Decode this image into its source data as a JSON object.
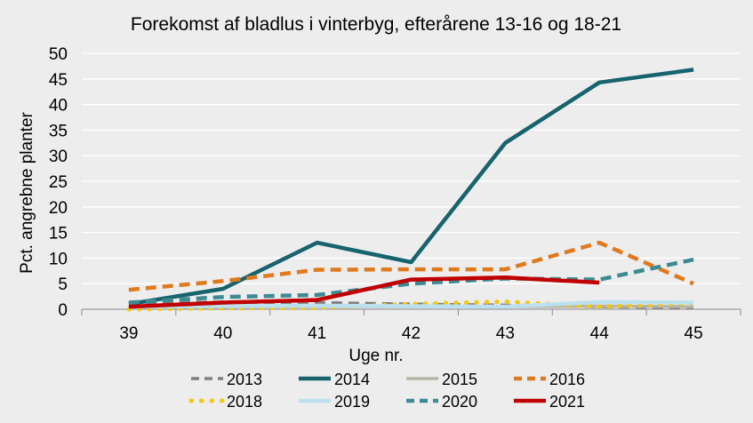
{
  "chart_data": {
    "type": "line",
    "title": "Forekomst af bladlus i vinterbyg, efterårene 13-16 og 18-21",
    "xlabel": "Uge nr.",
    "ylabel": "Pct. angrebne planter",
    "categories": [
      "39",
      "40",
      "41",
      "42",
      "43",
      "44",
      "45"
    ],
    "ylim": [
      0,
      50
    ],
    "yticks": [
      0,
      5,
      10,
      15,
      20,
      25,
      30,
      35,
      40,
      45,
      50
    ],
    "grid": "horizontal",
    "legend_position": "bottom",
    "series": [
      {
        "name": "2013",
        "color": "#7f7f7f",
        "dash": "dashed",
        "width": "medium",
        "values": [
          1.2,
          1.4,
          1.3,
          1.0,
          0.8,
          0.5,
          0.3
        ]
      },
      {
        "name": "2014",
        "color": "#17636e",
        "dash": "solid",
        "width": "thick",
        "values": [
          1.0,
          4.0,
          13.0,
          9.2,
          32.5,
          44.3,
          46.8
        ]
      },
      {
        "name": "2015",
        "color": "#b6b6a8",
        "dash": "solid",
        "width": "medium",
        "values": [
          0.3,
          0.4,
          0.5,
          0.5,
          0.5,
          0.6,
          0.5
        ]
      },
      {
        "name": "2016",
        "color": "#e07a1f",
        "dash": "dashed",
        "width": "thick",
        "values": [
          3.8,
          5.5,
          7.7,
          7.8,
          7.8,
          13.0,
          5.0
        ]
      },
      {
        "name": "2018",
        "color": "#f2c80f",
        "dash": "dotted",
        "width": "thick",
        "values": [
          0.0,
          0.2,
          0.3,
          1.0,
          1.5,
          0.5,
          1.2
        ]
      },
      {
        "name": "2019",
        "color": "#bde0f0",
        "dash": "solid",
        "width": "thick",
        "values": [
          0.5,
          0.6,
          0.7,
          0.6,
          0.5,
          1.4,
          1.3
        ]
      },
      {
        "name": "2020",
        "color": "#3d8a93",
        "dash": "dashed",
        "width": "thick",
        "values": [
          1.3,
          2.4,
          2.8,
          5.0,
          6.0,
          5.8,
          9.7
        ]
      },
      {
        "name": "2021",
        "color": "#c00000",
        "dash": "solid",
        "width": "thick",
        "values": [
          0.5,
          1.3,
          1.8,
          5.8,
          6.2,
          5.2,
          null
        ]
      }
    ]
  }
}
